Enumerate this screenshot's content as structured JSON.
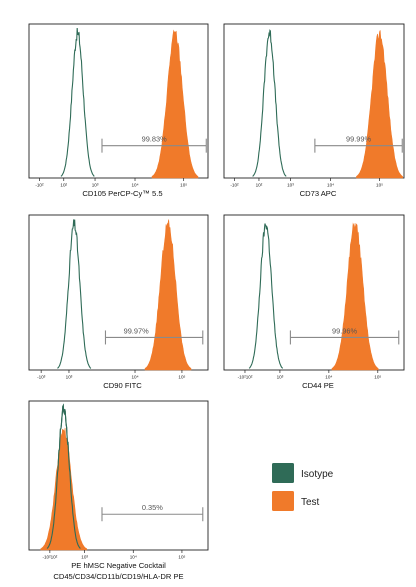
{
  "colors": {
    "isotype": "#2f6b57",
    "test": "#f07a2a",
    "gate": "#8a8a8a"
  },
  "legend": [
    {
      "label": "Isotype",
      "color": "#2f6b57"
    },
    {
      "label": "Test",
      "color": "#f07a2a"
    }
  ],
  "chart_data": [
    {
      "type": "histogram",
      "xlabel": "CD105 PerCP-Cy™ 5.5",
      "scale": "logicle",
      "xticks": [
        "-10²",
        "10²",
        "10³",
        "10⁴",
        "10⁵"
      ],
      "series": [
        {
          "name": "Isotype",
          "peak_log": 1.4,
          "style": "outline"
        },
        {
          "name": "Test",
          "peak_log": 4.2,
          "style": "filled"
        }
      ],
      "gate": {
        "label": "99.83%",
        "from": 2.1,
        "to": 5.1
      }
    },
    {
      "type": "histogram",
      "xlabel": "CD73 APC",
      "scale": "logicle",
      "xticks": [
        "-10²",
        "10²",
        "10³",
        "10⁴",
        "10⁵"
      ],
      "series": [
        {
          "name": "Isotype",
          "peak_log": 1.3,
          "style": "outline"
        },
        {
          "name": "Test",
          "peak_log": 4.45,
          "style": "filled"
        }
      ],
      "gate": {
        "label": "99.99%",
        "from": 2.6,
        "to": 5.1
      }
    },
    {
      "type": "histogram",
      "xlabel": "CD90 FITC",
      "scale": "logicle",
      "xticks": [
        "-10³",
        "10³",
        "10⁴",
        "10⁵"
      ],
      "series": [
        {
          "name": "Isotype",
          "peak_log": 1.3,
          "style": "outline"
        },
        {
          "name": "Test",
          "peak_log": 4.0,
          "style": "filled"
        }
      ],
      "gate": {
        "label": "99.97%",
        "from": 2.2,
        "to": 5.0
      }
    },
    {
      "type": "histogram",
      "xlabel": "CD44 PE",
      "scale": "logicle",
      "xticks": [
        "-10²10²",
        "10³",
        "10⁴",
        "10⁵"
      ],
      "series": [
        {
          "name": "Isotype",
          "peak_log": 1.2,
          "style": "outline"
        },
        {
          "name": "Test",
          "peak_log": 3.75,
          "style": "filled"
        }
      ],
      "gate": {
        "label": "99.96%",
        "from": 1.9,
        "to": 5.0
      }
    },
    {
      "type": "histogram",
      "xlabel": "PE hMSC Negative Cocktail",
      "xlabel2": "CD45/CD34/CD11b/CD19/HLA-DR PE",
      "scale": "logicle",
      "xticks": [
        "-10²10²",
        "10³",
        "10⁴",
        "10⁵"
      ],
      "series": [
        {
          "name": "Isotype",
          "peak_log": 1.0,
          "style": "outline"
        },
        {
          "name": "Test",
          "peak_log": 1.0,
          "style": "filled"
        }
      ],
      "gate": {
        "label": "0.35%",
        "from": 2.1,
        "to": 5.0
      }
    }
  ]
}
